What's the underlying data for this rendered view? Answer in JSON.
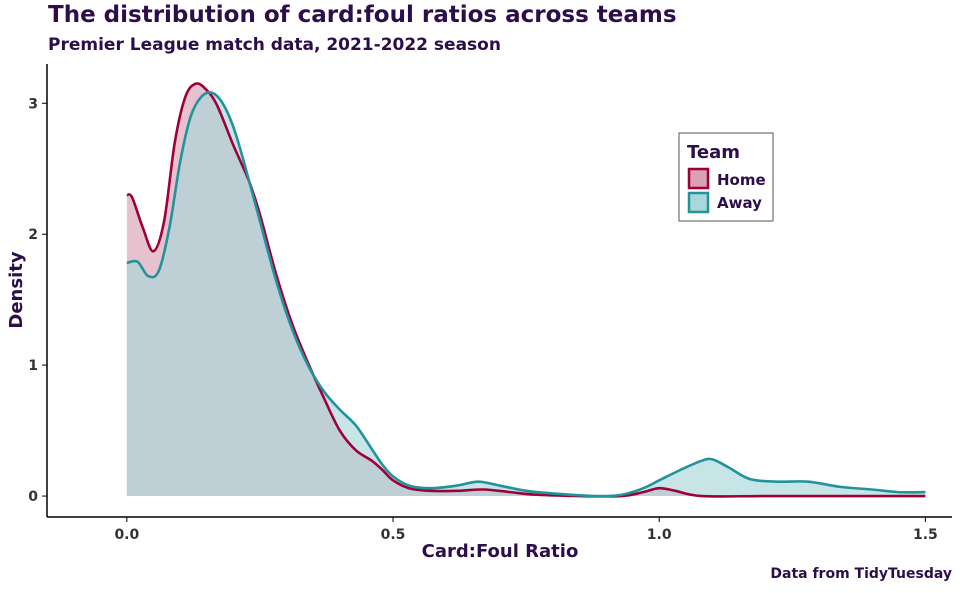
{
  "chart_data": {
    "type": "area",
    "title": "The distribution of card:foul ratios across teams",
    "subtitle": "Premier League match data, 2021-2022 season",
    "caption": "Data from TidyTuesday",
    "xlabel": "Card:Foul Ratio",
    "ylabel": "Density",
    "xlim": [
      -0.15,
      1.55
    ],
    "ylim": [
      -0.16,
      3.3
    ],
    "x_ticks": [
      0.0,
      0.5,
      1.0,
      1.5
    ],
    "x_tick_labels": [
      "0.0",
      "0.5",
      "1.0",
      "1.5"
    ],
    "y_ticks": [
      0,
      1,
      2,
      3
    ],
    "y_tick_labels": [
      "0",
      "1",
      "2",
      "3"
    ],
    "legend": {
      "title": "Team",
      "position": "top-right"
    },
    "series": [
      {
        "name": "Home",
        "color": "#a0003a",
        "fill": "#d9a1b3",
        "points": [
          [
            0.0,
            2.3
          ],
          [
            0.01,
            2.28
          ],
          [
            0.03,
            2.05
          ],
          [
            0.05,
            1.87
          ],
          [
            0.07,
            2.1
          ],
          [
            0.09,
            2.7
          ],
          [
            0.11,
            3.05
          ],
          [
            0.13,
            3.15
          ],
          [
            0.15,
            3.1
          ],
          [
            0.17,
            2.98
          ],
          [
            0.2,
            2.68
          ],
          [
            0.23,
            2.4
          ],
          [
            0.25,
            2.15
          ],
          [
            0.28,
            1.7
          ],
          [
            0.31,
            1.32
          ],
          [
            0.34,
            1.02
          ],
          [
            0.37,
            0.75
          ],
          [
            0.4,
            0.5
          ],
          [
            0.43,
            0.35
          ],
          [
            0.46,
            0.27
          ],
          [
            0.48,
            0.2
          ],
          [
            0.5,
            0.12
          ],
          [
            0.53,
            0.06
          ],
          [
            0.57,
            0.04
          ],
          [
            0.62,
            0.04
          ],
          [
            0.67,
            0.05
          ],
          [
            0.72,
            0.03
          ],
          [
            0.77,
            0.01
          ],
          [
            0.85,
            0.0
          ],
          [
            0.93,
            0.0
          ],
          [
            0.97,
            0.03
          ],
          [
            1.0,
            0.06
          ],
          [
            1.03,
            0.04
          ],
          [
            1.08,
            0.0
          ],
          [
            1.2,
            0.0
          ],
          [
            1.35,
            0.0
          ],
          [
            1.5,
            0.0
          ]
        ]
      },
      {
        "name": "Away",
        "color": "#22939b",
        "fill": "#a9d7da",
        "points": [
          [
            0.0,
            1.78
          ],
          [
            0.02,
            1.79
          ],
          [
            0.04,
            1.68
          ],
          [
            0.06,
            1.72
          ],
          [
            0.08,
            2.05
          ],
          [
            0.1,
            2.55
          ],
          [
            0.12,
            2.9
          ],
          [
            0.14,
            3.05
          ],
          [
            0.16,
            3.08
          ],
          [
            0.18,
            3.0
          ],
          [
            0.2,
            2.82
          ],
          [
            0.22,
            2.55
          ],
          [
            0.25,
            2.1
          ],
          [
            0.28,
            1.65
          ],
          [
            0.31,
            1.28
          ],
          [
            0.34,
            1.0
          ],
          [
            0.37,
            0.8
          ],
          [
            0.4,
            0.66
          ],
          [
            0.43,
            0.54
          ],
          [
            0.46,
            0.36
          ],
          [
            0.48,
            0.24
          ],
          [
            0.5,
            0.15
          ],
          [
            0.53,
            0.08
          ],
          [
            0.57,
            0.06
          ],
          [
            0.62,
            0.08
          ],
          [
            0.66,
            0.11
          ],
          [
            0.7,
            0.08
          ],
          [
            0.75,
            0.04
          ],
          [
            0.8,
            0.02
          ],
          [
            0.88,
            0.0
          ],
          [
            0.93,
            0.01
          ],
          [
            0.97,
            0.06
          ],
          [
            1.0,
            0.12
          ],
          [
            1.04,
            0.2
          ],
          [
            1.08,
            0.27
          ],
          [
            1.1,
            0.28
          ],
          [
            1.13,
            0.22
          ],
          [
            1.17,
            0.13
          ],
          [
            1.22,
            0.11
          ],
          [
            1.28,
            0.11
          ],
          [
            1.34,
            0.07
          ],
          [
            1.4,
            0.05
          ],
          [
            1.45,
            0.03
          ],
          [
            1.5,
            0.03
          ]
        ]
      }
    ]
  }
}
